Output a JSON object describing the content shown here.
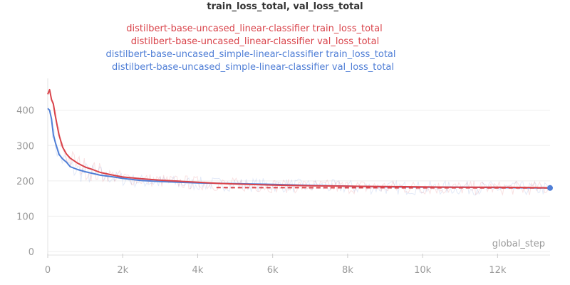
{
  "chart_data": {
    "type": "line",
    "title": "train_loss_total, val_loss_total",
    "xlabel": "global_step",
    "ylabel": "",
    "xlim": [
      0,
      13400
    ],
    "ylim": [
      0,
      470
    ],
    "xticks": [
      0,
      2000,
      4000,
      6000,
      8000,
      10000,
      12000
    ],
    "xtick_labels": [
      "0",
      "2k",
      "4k",
      "6k",
      "8k",
      "10k",
      "12k"
    ],
    "yticks": [
      0,
      100,
      200,
      300,
      400
    ],
    "yticks_labels": [
      "0",
      "100",
      "200",
      "300",
      "400"
    ],
    "grid": true,
    "legend_position": "top-center",
    "series": [
      {
        "name": "distilbert-base-uncased_linear-classifier train_loss_total",
        "color": "#d9434a",
        "style": "solid",
        "x": [
          0,
          50,
          100,
          150,
          200,
          300,
          400,
          500,
          600,
          800,
          1000,
          1200,
          1400,
          1700,
          2000,
          2500,
          3000,
          3500,
          4000,
          4500,
          5000,
          6000,
          7000,
          8000,
          9000,
          10000,
          11000,
          12000,
          13000,
          13400
        ],
        "y": [
          445,
          458,
          430,
          418,
          385,
          330,
          295,
          276,
          264,
          250,
          239,
          232,
          224,
          217,
          211,
          206,
          202,
          199,
          196,
          193,
          191,
          188,
          186,
          185,
          184,
          183,
          182,
          182,
          181,
          180
        ]
      },
      {
        "name": "distilbert-base-uncased_linear-classifier val_loss_total",
        "color": "#d9434a",
        "style": "dashed",
        "x": [
          4500,
          13400
        ],
        "y": [
          181,
          180
        ]
      },
      {
        "name": "distilbert-base-uncased_simple-linear-classifier train_loss_total",
        "color": "#4f7ed6",
        "style": "solid",
        "x": [
          0,
          50,
          100,
          150,
          200,
          300,
          400,
          500,
          600,
          800,
          1000,
          1200,
          1400,
          1700,
          2000,
          2500,
          3000,
          3500,
          4000,
          4500,
          5000,
          6000,
          7000,
          8000,
          9000,
          10000,
          11000,
          12000,
          13000,
          13400
        ],
        "y": [
          405,
          400,
          375,
          330,
          310,
          275,
          262,
          253,
          240,
          232,
          226,
          221,
          216,
          212,
          207,
          201,
          198,
          196,
          194,
          193,
          192,
          190,
          187,
          185,
          183,
          182,
          182,
          181,
          180,
          180
        ]
      },
      {
        "name": "distilbert-base-uncased_simple-linear-classifier val_loss_total",
        "color": "#4f7ed6",
        "style": "marker",
        "x": [
          13400
        ],
        "y": [
          180
        ]
      }
    ]
  }
}
